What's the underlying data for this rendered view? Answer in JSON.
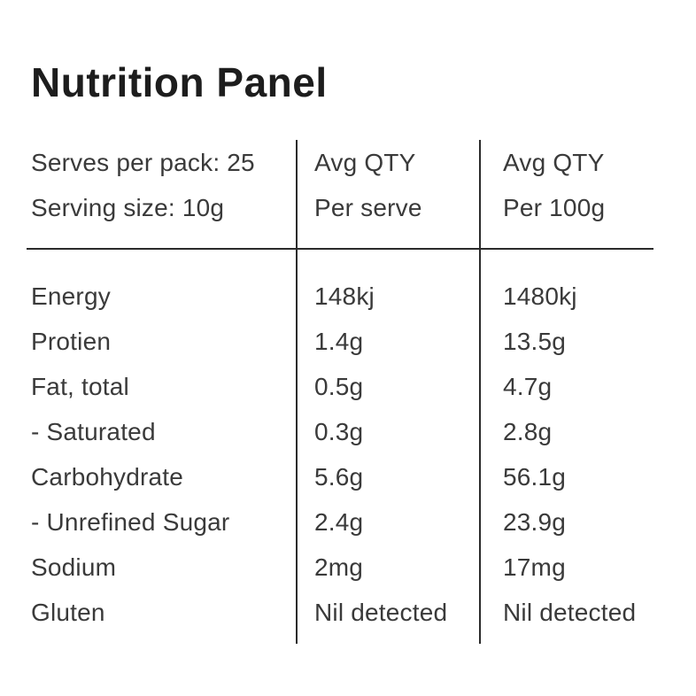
{
  "title": "Nutrition Panel",
  "table": {
    "header": {
      "serves_per_pack": "Serves per pack: 25",
      "serving_size": "Serving size: 10g",
      "col_serve_line1": "Avg QTY",
      "col_serve_line2": "Per serve",
      "col_100g_line1": "Avg QTY",
      "col_100g_line2": "Per 100g"
    },
    "rows": [
      {
        "label": "Energy",
        "per_serve": "148kj",
        "per_100g": "1480kj"
      },
      {
        "label": "Protien",
        "per_serve": "1.4g",
        "per_100g": "13.5g"
      },
      {
        "label": "Fat, total",
        "per_serve": "0.5g",
        "per_100g": "4.7g"
      },
      {
        "label": "- Saturated",
        "per_serve": "0.3g",
        "per_100g": "2.8g"
      },
      {
        "label": "Carbohydrate",
        "per_serve": "5.6g",
        "per_100g": "56.1g"
      },
      {
        "label": "- Unrefined Sugar",
        "per_serve": "2.4g",
        "per_100g": "23.9g"
      },
      {
        "label": "Sodium",
        "per_serve": "2mg",
        "per_100g": "17mg"
      },
      {
        "label": "Gluten",
        "per_serve": "Nil detected",
        "per_100g": "Nil detected"
      }
    ]
  },
  "colors": {
    "background": "#ffffff",
    "title_text": "#1d1d1d",
    "body_text": "#3a3a3a",
    "rule_lines": "#2b2b2b"
  }
}
